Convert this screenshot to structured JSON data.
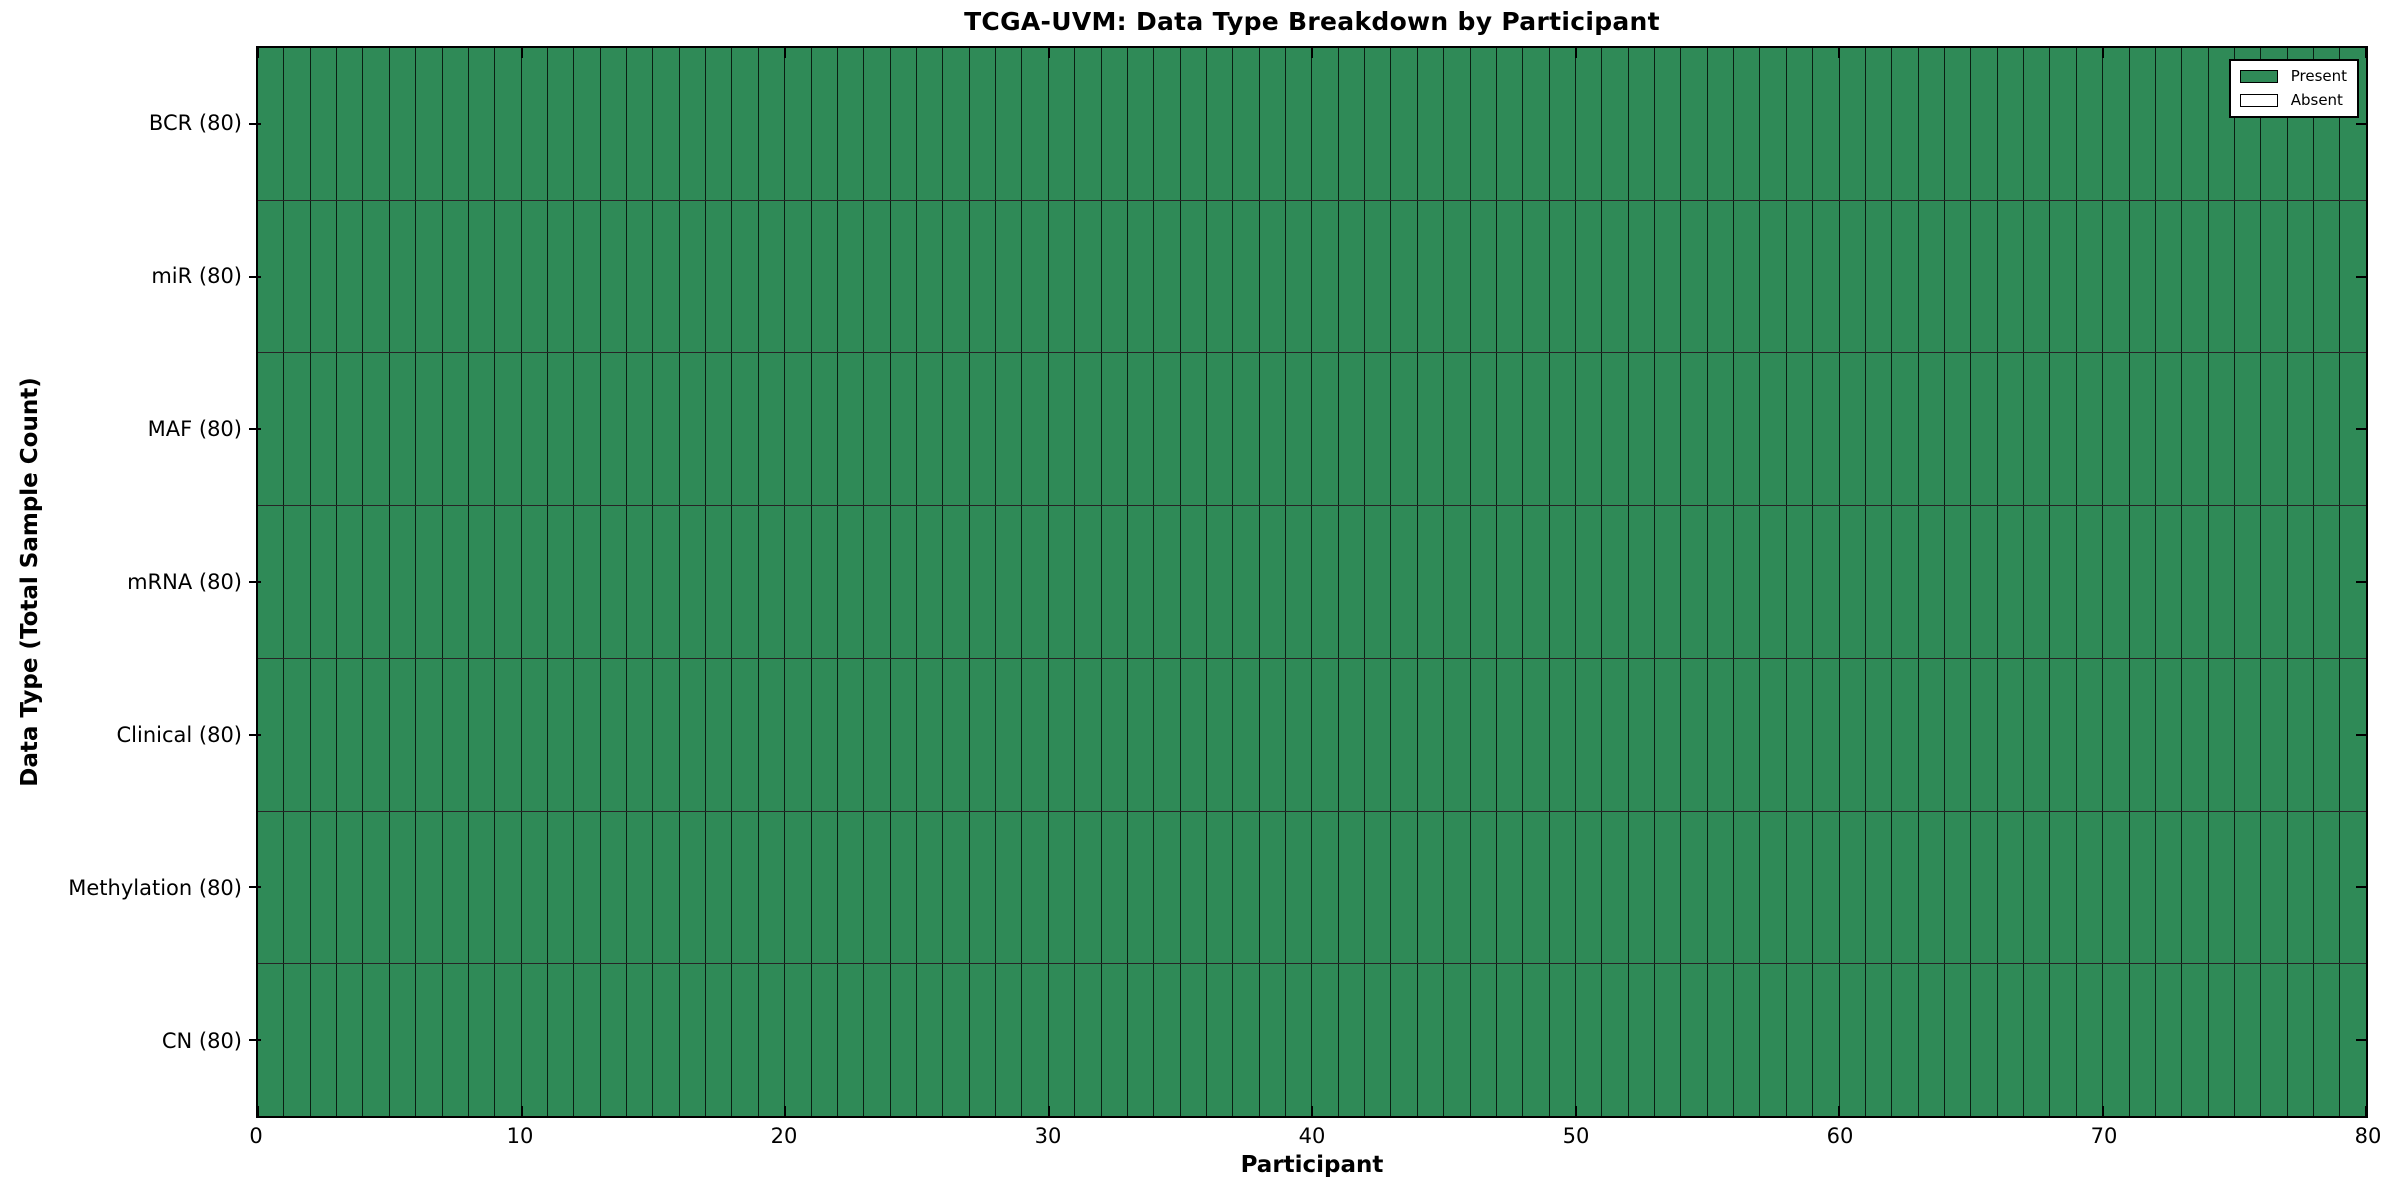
{
  "chart_data": {
    "type": "heatmap",
    "title": "TCGA-UVM: Data Type Breakdown by Participant",
    "xlabel": "Participant",
    "ylabel": "Data Type (Total Sample Count)",
    "x_axis": {
      "min": 0,
      "max": 80,
      "ticks": [
        0,
        10,
        20,
        30,
        40,
        50,
        60,
        70,
        80
      ]
    },
    "n_participants": 80,
    "rows": [
      {
        "label": "BCR (80)",
        "data_type": "BCR",
        "total_samples": 80,
        "present": 80,
        "absent": 0
      },
      {
        "label": "miR (80)",
        "data_type": "miR",
        "total_samples": 80,
        "present": 80,
        "absent": 0
      },
      {
        "label": "MAF (80)",
        "data_type": "MAF",
        "total_samples": 80,
        "present": 80,
        "absent": 0
      },
      {
        "label": "mRNA (80)",
        "data_type": "mRNA",
        "total_samples": 80,
        "present": 80,
        "absent": 0
      },
      {
        "label": "Clinical (80)",
        "data_type": "Clinical",
        "total_samples": 80,
        "present": 80,
        "absent": 0
      },
      {
        "label": "Methylation (80)",
        "data_type": "Methylation",
        "total_samples": 80,
        "present": 80,
        "absent": 0
      },
      {
        "label": "CN (80)",
        "data_type": "CN",
        "total_samples": 80,
        "present": 80,
        "absent": 0
      }
    ],
    "legend": {
      "position": "top-right",
      "entries": [
        {
          "label": "Present",
          "color": "#2f8a57"
        },
        {
          "label": "Absent",
          "color": "#ffffff"
        }
      ]
    },
    "colors": {
      "present": "#2f8a57",
      "absent": "#ffffff",
      "cell_border": "#000000",
      "axes_border": "#000000",
      "background": "#ffffff"
    },
    "grid": true
  }
}
